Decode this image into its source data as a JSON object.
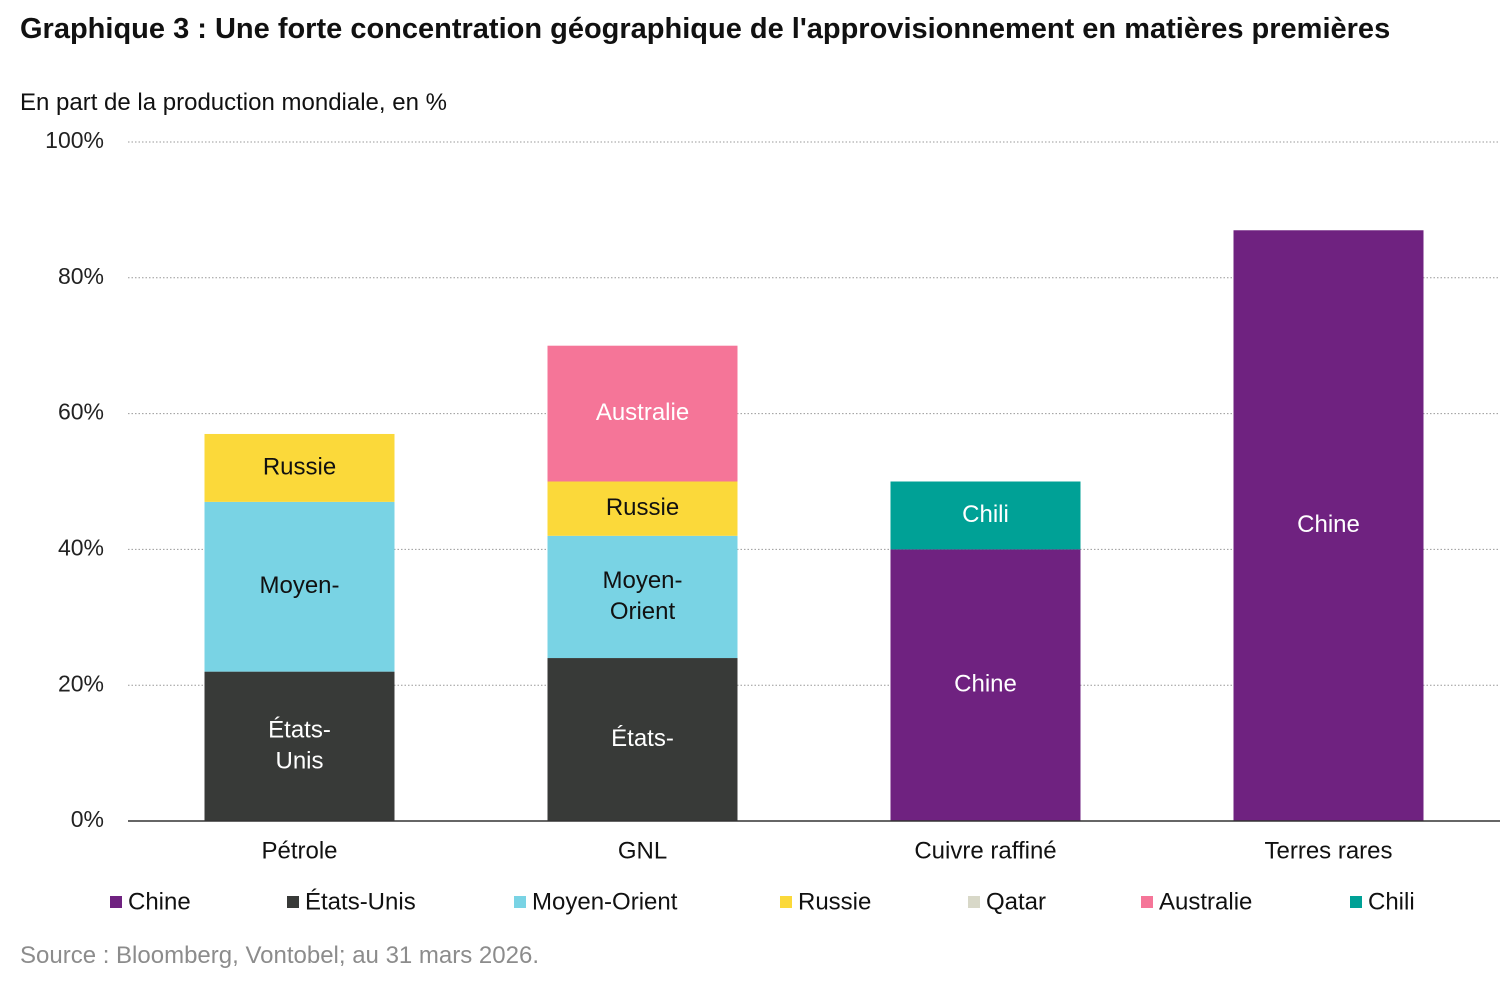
{
  "chart_data": {
    "type": "stacked_bar",
    "title": "Graphique 3 : Une forte concentration géographique de l'approvisionnement en matières premières",
    "subtitle": "En part de la production mondiale, en %",
    "source": "Source : Bloomberg, Vontobel; au 31 mars 2026.",
    "categories": [
      "Pétrole",
      "GNL",
      "Cuivre raffiné",
      "Terres rares"
    ],
    "series": [
      {
        "name": "Chine",
        "color": "#6f2280",
        "label_color": "#ffffff",
        "values": [
          null,
          null,
          40,
          87
        ],
        "labels": [
          null,
          null,
          "Chine",
          "Chine"
        ]
      },
      {
        "name": "États-Unis",
        "color": "#383a38",
        "label_color": "#ffffff",
        "values": [
          22,
          24,
          null,
          null
        ],
        "labels": [
          "États-Unis",
          "États-",
          null,
          null
        ]
      },
      {
        "name": "Moyen-Orient",
        "color": "#79d3e4",
        "label_color": "#111111",
        "values": [
          25,
          18,
          null,
          null
        ],
        "labels": [
          "Moyen-",
          "Moyen-Orient",
          null,
          null
        ]
      },
      {
        "name": "Russie",
        "color": "#fbd93a",
        "label_color": "#111111",
        "values": [
          10,
          8,
          null,
          null
        ],
        "labels": [
          "Russie",
          "Russie",
          null,
          null
        ]
      },
      {
        "name": "Qatar",
        "color": "#d8d8c8",
        "label_color": "#111111",
        "values": [
          null,
          null,
          null,
          null
        ],
        "labels": [
          null,
          null,
          null,
          null
        ]
      },
      {
        "name": "Australie",
        "color": "#f57598",
        "label_color": "#ffffff",
        "values": [
          null,
          20,
          null,
          null
        ],
        "labels": [
          null,
          "Australie",
          null,
          null
        ]
      },
      {
        "name": "Chili",
        "color": "#00a196",
        "label_color": "#ffffff",
        "values": [
          null,
          null,
          10,
          null
        ],
        "labels": [
          null,
          null,
          "Chili",
          null
        ]
      }
    ],
    "ylim": [
      0,
      100
    ],
    "yticks": [
      {
        "value": 0,
        "label": "0%"
      },
      {
        "value": 20,
        "label": "20%"
      },
      {
        "value": 40,
        "label": "40%"
      },
      {
        "value": 60,
        "label": "60%"
      },
      {
        "value": 80,
        "label": "80%"
      },
      {
        "value": 100,
        "label": "100%"
      }
    ],
    "grid": true,
    "legend": "bottom"
  }
}
